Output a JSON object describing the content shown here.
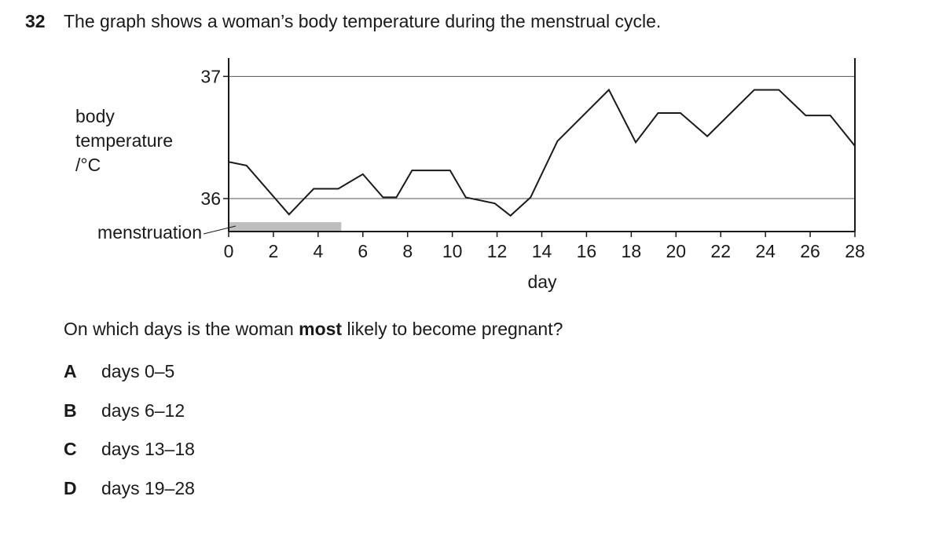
{
  "question": {
    "number": "32",
    "intro": "The graph shows a woman’s body temperature during the menstrual cycle.",
    "prompt_pre": "On which days is the woman ",
    "prompt_bold": "most",
    "prompt_post": " likely to become pregnant?",
    "options": [
      {
        "letter": "A",
        "text": "days 0–5"
      },
      {
        "letter": "B",
        "text": "days 6–12"
      },
      {
        "letter": "C",
        "text": "days 13–18"
      },
      {
        "letter": "D",
        "text": "days 19–28"
      }
    ]
  },
  "chart_data": {
    "type": "line",
    "title": "",
    "xlabel": "day",
    "ylabel_lines": [
      "body",
      "temperature",
      "/°C"
    ],
    "xlim": [
      0,
      28
    ],
    "ylim": [
      35.73,
      37.15
    ],
    "x_ticks": [
      0,
      2,
      4,
      6,
      8,
      10,
      12,
      14,
      16,
      18,
      20,
      22,
      24,
      26,
      28
    ],
    "x_tick_labels": [
      "0",
      "2",
      "4",
      "6",
      "8",
      "10",
      "12",
      "14",
      "16",
      "18",
      "20",
      "22",
      "24",
      "26",
      "28"
    ],
    "y_ticks": [
      36,
      37
    ],
    "y_tick_labels": [
      "36",
      "37"
    ],
    "gridlines_y": [
      36,
      37
    ],
    "x": [
      0,
      0.8,
      2.7,
      3.8,
      4.9,
      6,
      6.9,
      7.5,
      8.2,
      9.9,
      10.6,
      11.9,
      12.6,
      13.5,
      14.7,
      17,
      18.2,
      19.2,
      20.2,
      21.4,
      23.5,
      24.6,
      25.8,
      26.9,
      28
    ],
    "y": [
      36.3,
      36.27,
      35.87,
      36.08,
      36.08,
      36.2,
      36.01,
      36.01,
      36.23,
      36.23,
      36.01,
      35.96,
      35.86,
      36.01,
      36.47,
      36.89,
      36.46,
      36.7,
      36.7,
      36.51,
      36.89,
      36.89,
      36.68,
      36.68,
      36.43
    ],
    "menstruation": {
      "label": "menstruation",
      "from_day": 0,
      "to_day": 5,
      "color": "#bfbfbf"
    },
    "line_color": "#1a1a1a"
  }
}
